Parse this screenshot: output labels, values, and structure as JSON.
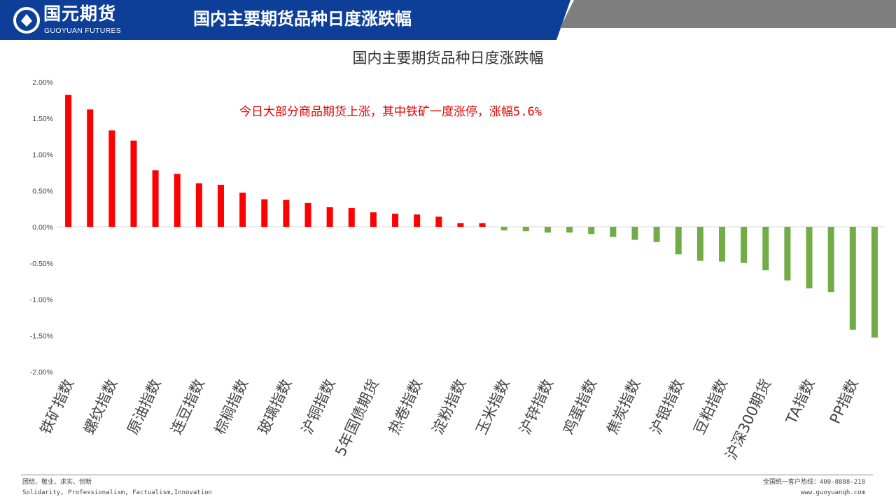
{
  "header": {
    "logo_cn": "国元期货",
    "logo_en": "GUOYUAN FUTURES",
    "title": "国内主要期货品种日度涨跌幅",
    "colors": {
      "brand_blue": "#0d3f99",
      "gray": "#7f7f7f"
    }
  },
  "chart_data": {
    "type": "bar",
    "title": "国内主要期货品种日度涨跌幅",
    "annotation": "今日大部分商品期货上涨，其中铁矿一度涨停，涨幅5.6%",
    "xlabel": "",
    "ylabel": "",
    "ylim": [
      -2.0,
      2.0
    ],
    "yticks": [
      2.0,
      1.5,
      1.0,
      0.5,
      0.0,
      -0.5,
      -1.0,
      -1.5,
      -2.0
    ],
    "ytick_labels": [
      "2.00%",
      "1.50%",
      "1.00%",
      "0.50%",
      "0.00%",
      "-0.50%",
      "-1.00%",
      "-1.50%",
      "-2.00%"
    ],
    "categories": [
      "铁矿指数",
      "",
      "螺纹指数",
      "",
      "原油指数",
      "",
      "连豆指数",
      "",
      "棕榈指数",
      "",
      "玻璃指数",
      "",
      "沪铜指数",
      "",
      "5年国债期货",
      "",
      "热卷指数",
      "",
      "淀粉指数",
      "",
      "玉米指数",
      "",
      "沪锌指数",
      "",
      "鸡蛋指数",
      "",
      "焦炭指数",
      "",
      "沪银指数",
      "",
      "豆粕指数",
      "",
      "沪深300期货",
      "",
      "TA指数",
      "",
      "PP指数",
      ""
    ],
    "values": [
      1.82,
      1.62,
      1.33,
      1.19,
      0.78,
      0.73,
      0.6,
      0.58,
      0.47,
      0.38,
      0.37,
      0.33,
      0.27,
      0.26,
      0.2,
      0.18,
      0.17,
      0.14,
      0.05,
      0.05,
      -0.05,
      -0.06,
      -0.08,
      -0.08,
      -0.1,
      -0.14,
      -0.18,
      -0.21,
      -0.38,
      -0.47,
      -0.48,
      -0.5,
      -0.6,
      -0.74,
      -0.85,
      -0.9,
      -1.42,
      -1.53
    ],
    "unit": "%",
    "colors": {
      "positive": "#ff0000",
      "negative": "#70ad47"
    },
    "grid": false
  },
  "footer": {
    "motto_cn": "团结、敬业、求实、创新",
    "motto_en": "Solidarity, Professionalism, Factualism,Innovation",
    "hotline": "全国统一客户热线：400-8888-218",
    "website": "www.guoyuanqh.com"
  }
}
